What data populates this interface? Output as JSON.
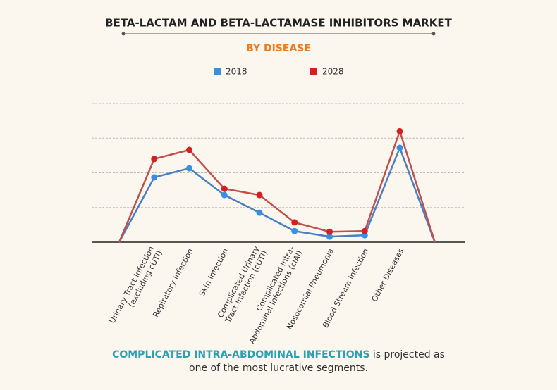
{
  "chart_data": {
    "type": "line",
    "title": "BETA-LACTAM AND BETA-LACTAMASE INHIBITORS MARKET",
    "subtitle": "BY DISEASE",
    "categories": [
      null,
      [
        "Urinary Tract Infection",
        "(excluding cUTI)"
      ],
      [
        "Repiratory Infection"
      ],
      [
        "Skin Infection"
      ],
      [
        "Complicated Urinary",
        "Tract Infection (cUTI)"
      ],
      [
        "Complicated Intra-",
        "Abdominal Infections (cIAI)"
      ],
      [
        "Nosocomial Pneumonia"
      ],
      [
        "Blood Stream Infection"
      ],
      [
        "Other Diseases"
      ],
      null
    ],
    "series": [
      {
        "name": "2018",
        "color": "#3a8ee0",
        "values": [
          0,
          1.87,
          2.13,
          1.36,
          0.85,
          0.32,
          0.16,
          0.2,
          2.72,
          0
        ]
      },
      {
        "name": "2028",
        "color": "#d42020",
        "values": [
          0,
          2.4,
          2.66,
          1.54,
          1.36,
          0.57,
          0.3,
          0.32,
          3.2,
          0
        ]
      }
    ],
    "ylim": [
      0,
      4
    ],
    "yticks": [
      1,
      2,
      3,
      4
    ],
    "grid": true,
    "footer": {
      "highlight": "COMPLICATED INTRA-ABDOMINAL INFECTIONS",
      "line1": "is projected as",
      "line2": "one of the most lucrative segments."
    }
  }
}
